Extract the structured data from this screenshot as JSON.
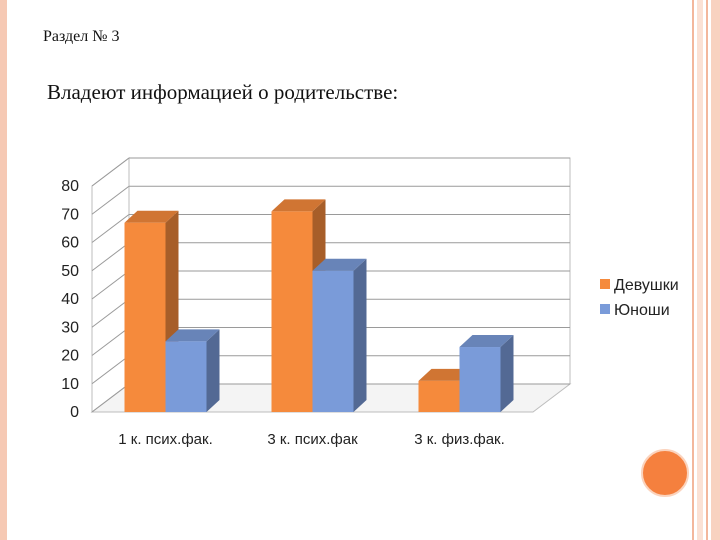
{
  "slide": {
    "section": "Раздел № 3",
    "title": "Владеют информацией  о родительстве:"
  },
  "chart_data": {
    "type": "bar",
    "style": "3d-clustered-column",
    "categories": [
      "1 к. псих.фак.",
      "3 к. псих.фак",
      "3 к. физ.фак."
    ],
    "series": [
      {
        "name": "Девушки",
        "values": [
          67,
          71,
          11
        ],
        "color": "#f58a3c"
      },
      {
        "name": "Юноши",
        "values": [
          25,
          50,
          23
        ],
        "color": "#7a9bd9"
      }
    ],
    "yticks": [
      0,
      10,
      20,
      30,
      40,
      50,
      60,
      70,
      80
    ],
    "ylim": [
      0,
      80
    ],
    "grid": true,
    "legend_position": "right"
  }
}
